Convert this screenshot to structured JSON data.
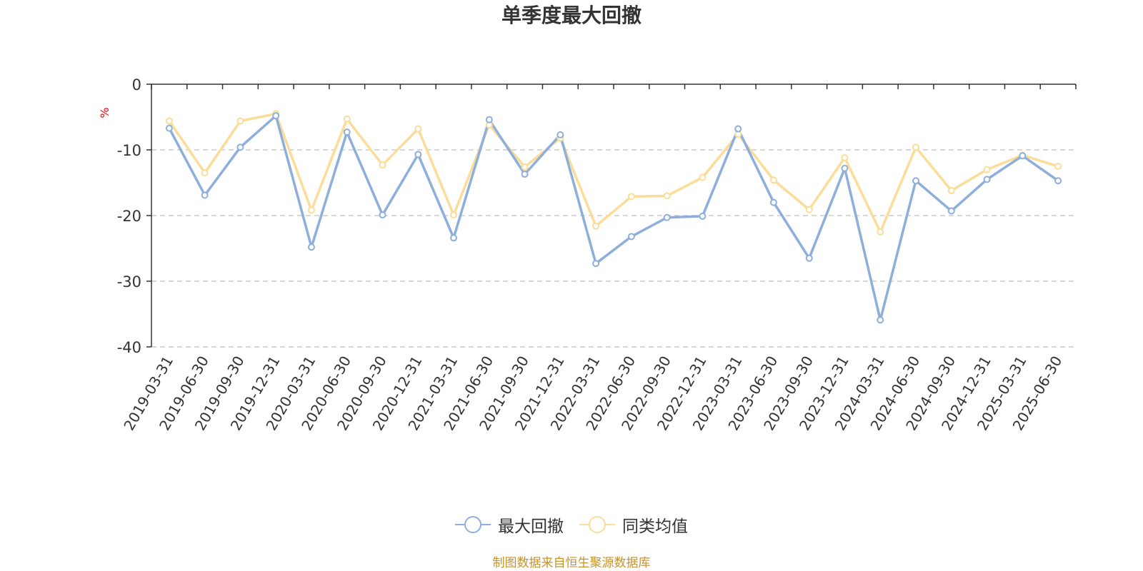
{
  "chart_data": {
    "type": "line",
    "title": "单季度最大回撤",
    "ylabel": "%",
    "ylim": [
      -40,
      0
    ],
    "yticks": [
      0,
      -10,
      -20,
      -30,
      -40
    ],
    "grid": true,
    "legend_position": "bottom",
    "categories": [
      "2019-03-31",
      "2019-06-30",
      "2019-09-30",
      "2019-12-31",
      "2020-03-31",
      "2020-06-30",
      "2020-09-30",
      "2020-12-31",
      "2021-03-31",
      "2021-06-30",
      "2021-09-30",
      "2021-12-31",
      "2022-03-31",
      "2022-06-30",
      "2022-09-30",
      "2022-12-31",
      "2023-03-31",
      "2023-06-30",
      "2023-09-30",
      "2023-12-31",
      "2024-03-31",
      "2024-06-30",
      "2024-09-30",
      "2024-12-31",
      "2025-03-31",
      "2025-06-30"
    ],
    "series": [
      {
        "name": "最大回撤",
        "color": "#8eaedc",
        "values": [
          -6.7,
          -16.9,
          -9.6,
          -4.8,
          -24.8,
          -7.3,
          -19.9,
          -10.7,
          -23.4,
          -5.4,
          -13.7,
          -7.7,
          -27.3,
          -23.2,
          -20.3,
          -20.1,
          -6.8,
          -18.0,
          -26.5,
          -12.8,
          -35.9,
          -14.7,
          -19.3,
          -14.5,
          -10.9,
          -14.7
        ]
      },
      {
        "name": "同类均值",
        "color": "#fbdc99",
        "values": [
          -5.6,
          -13.5,
          -5.6,
          -4.5,
          -19.2,
          -5.3,
          -12.3,
          -6.8,
          -19.9,
          -6.2,
          -12.6,
          -8.2,
          -21.6,
          -17.1,
          -17.0,
          -14.2,
          -7.6,
          -14.6,
          -19.1,
          -11.2,
          -22.5,
          -9.6,
          -16.2,
          -13.0,
          -10.8,
          -12.5
        ]
      }
    ]
  },
  "source_note": "制图数据来自恒生聚源数据库",
  "colors": {
    "axis": "#333333",
    "grid": "#cccccc",
    "unit_label": "#ff0000",
    "source_note": "#c8922a"
  }
}
